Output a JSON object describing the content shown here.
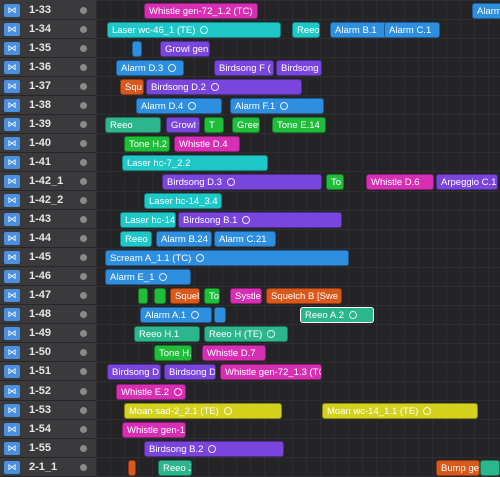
{
  "tracks": [
    "1-33",
    "1-34",
    "1-35",
    "1-36",
    "1-37",
    "1-38",
    "1-39",
    "1-40",
    "1-41",
    "1-42_1",
    "1-42_2",
    "1-43",
    "1-44",
    "1-45",
    "1-46",
    "1-47",
    "1-48",
    "1-49",
    "1-50",
    "1-51",
    "1-52",
    "1-53",
    "1-54",
    "1-55",
    "2-1_1"
  ],
  "icon": "bowtie-icon",
  "colors": {
    "magenta": "#d62fb3",
    "cyan": "#1ec8c8",
    "blue": "#2e8fe0",
    "purple": "#7a45dc",
    "green": "#1fbd3a",
    "teal": "#2bb68e",
    "orange": "#d9581c",
    "yellow": "#d5d21d"
  },
  "regions": [
    {
      "row": 0,
      "label": "Whistle gen-72_1.2 (TC)",
      "color": "magenta"
    },
    {
      "row": 0,
      "label": "Alarm",
      "color": "blue"
    },
    {
      "row": 1,
      "label": "Laser wc-46_1 (TE)",
      "color": "cyan",
      "loop": true
    },
    {
      "row": 1,
      "label": "Reeo",
      "color": "cyan"
    },
    {
      "row": 1,
      "label": "Alarm B.1",
      "color": "blue"
    },
    {
      "row": 1,
      "label": "Alarm C.1",
      "color": "blue"
    },
    {
      "row": 2,
      "label": "",
      "color": "blue"
    },
    {
      "row": 2,
      "label": "Growl gen",
      "color": "purple"
    },
    {
      "row": 3,
      "label": "Alarm D.3",
      "color": "blue",
      "loop": true
    },
    {
      "row": 3,
      "label": "Birdsong F (",
      "color": "purple"
    },
    {
      "row": 3,
      "label": "Birdsong",
      "color": "purple"
    },
    {
      "row": 4,
      "label": "Squ",
      "color": "orange"
    },
    {
      "row": 4,
      "label": "Birdsong D.2",
      "color": "purple",
      "loop": true
    },
    {
      "row": 5,
      "label": "Alarm D.4",
      "color": "blue",
      "loop": true
    },
    {
      "row": 5,
      "label": "Alarm F.1",
      "color": "blue",
      "loop": true
    },
    {
      "row": 6,
      "label": "Reeo",
      "color": "teal"
    },
    {
      "row": 6,
      "label": "Growl w",
      "color": "purple"
    },
    {
      "row": 6,
      "label": "T",
      "color": "green"
    },
    {
      "row": 6,
      "label": "Greet",
      "color": "green"
    },
    {
      "row": 6,
      "label": "Tone E.14",
      "color": "green"
    },
    {
      "row": 7,
      "label": "Tone H.2",
      "color": "green"
    },
    {
      "row": 7,
      "label": "Whistle D.4",
      "color": "magenta"
    },
    {
      "row": 8,
      "label": "Laser hc-7_2.2",
      "color": "cyan"
    },
    {
      "row": 9,
      "label": "Birdsong D.3",
      "color": "purple",
      "loop": true
    },
    {
      "row": 9,
      "label": "To",
      "color": "green"
    },
    {
      "row": 9,
      "label": "Whistle D.6",
      "color": "magenta"
    },
    {
      "row": 9,
      "label": "Arpeggio C.1",
      "color": "purple"
    },
    {
      "row": 10,
      "label": "Laser hc-14_3.4",
      "color": "cyan"
    },
    {
      "row": 11,
      "label": "Laser hc-14",
      "color": "cyan"
    },
    {
      "row": 11,
      "label": "Birdsong B.1",
      "color": "purple",
      "loop": true
    },
    {
      "row": 12,
      "label": "Reeo",
      "color": "cyan"
    },
    {
      "row": 12,
      "label": "Alarm B.24",
      "color": "blue"
    },
    {
      "row": 12,
      "label": "Alarm C.21",
      "color": "blue"
    },
    {
      "row": 13,
      "label": "Scream A_1.1 (TC)",
      "color": "blue",
      "loop": true
    },
    {
      "row": 14,
      "label": "Alarm E_1",
      "color": "blue",
      "loop": true
    },
    {
      "row": 15,
      "label": "",
      "color": "green"
    },
    {
      "row": 15,
      "label": "",
      "color": "green"
    },
    {
      "row": 15,
      "label": "Squel",
      "color": "orange"
    },
    {
      "row": 15,
      "label": "To",
      "color": "green"
    },
    {
      "row": 15,
      "label": "Systle",
      "color": "magenta"
    },
    {
      "row": 15,
      "label": "Squelch B [Swe",
      "color": "orange"
    },
    {
      "row": 16,
      "label": "Alarm A.1",
      "color": "blue",
      "loop": true
    },
    {
      "row": 16,
      "label": "",
      "color": "blue"
    },
    {
      "row": 16,
      "label": "Reeo A.2",
      "color": "teal",
      "loop": true
    },
    {
      "row": 17,
      "label": "Reeo H.1",
      "color": "teal"
    },
    {
      "row": 17,
      "label": "Reeo H (TE)",
      "color": "teal",
      "loop": true
    },
    {
      "row": 18,
      "label": "Tone H.",
      "color": "green"
    },
    {
      "row": 18,
      "label": "Whistle D.7",
      "color": "magenta"
    },
    {
      "row": 19,
      "label": "Birdsong D (",
      "color": "purple"
    },
    {
      "row": 19,
      "label": "Birdsong D",
      "color": "purple"
    },
    {
      "row": 19,
      "label": "Whistle gen-72_1.3 (TC)",
      "color": "magenta"
    },
    {
      "row": 20,
      "label": "Whistle E.2",
      "color": "magenta",
      "loop": true
    },
    {
      "row": 21,
      "label": "Moan sad-2_2.1 (TE)",
      "color": "yellow",
      "loop": true
    },
    {
      "row": 21,
      "label": "Moan wc-14_1.1 (TE)",
      "color": "yellow",
      "loop": true
    },
    {
      "row": 22,
      "label": "Whistle gen-1",
      "color": "magenta"
    },
    {
      "row": 23,
      "label": "Birdsong B.2",
      "color": "purple",
      "loop": true
    },
    {
      "row": 24,
      "label": "",
      "color": "orange"
    },
    {
      "row": 24,
      "label": "Reeo J",
      "color": "teal"
    },
    {
      "row": 24,
      "label": "Bump gen",
      "color": "orange"
    },
    {
      "row": 24,
      "label": "",
      "color": "teal"
    }
  ]
}
